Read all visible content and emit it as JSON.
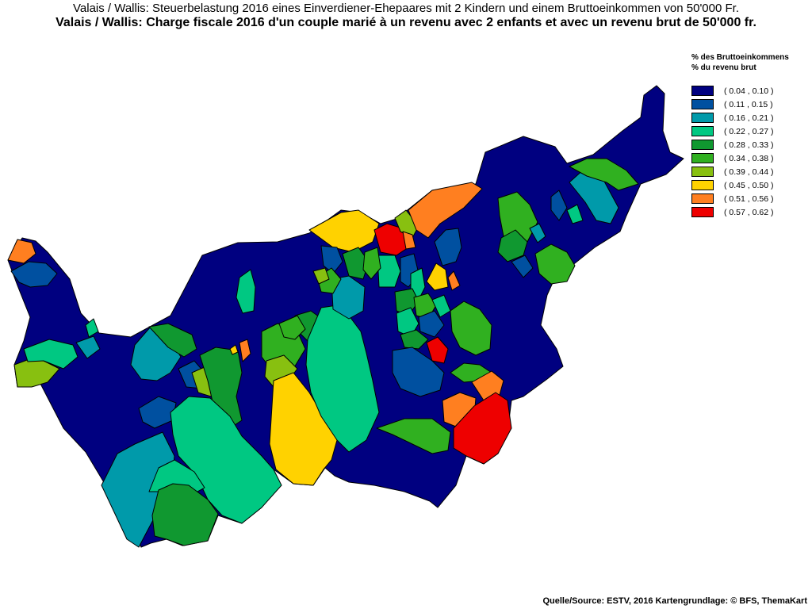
{
  "header": {
    "title_de": "Valais / Wallis: Steuerbelastung 2016 eines Einverdiener-Ehepaares mit 2 Kindern und einem Bruttoeinkommen von 50'000 Fr.",
    "title_fr": "Valais / Wallis: Charge fiscale 2016 d'un couple marié à un revenu avec 2 enfants et avec un revenu brut de 50'000 fr."
  },
  "legend": {
    "title_de": "% des Bruttoeinkommens",
    "title_fr": "% du revenu brut",
    "classes": [
      {
        "range": "( 0.04 , 0.10 )",
        "color": "#000080"
      },
      {
        "range": "( 0.11 , 0.15 )",
        "color": "#0050a0"
      },
      {
        "range": "( 0.16 , 0.21 )",
        "color": "#009aaa"
      },
      {
        "range": "( 0.22 , 0.27 )",
        "color": "#00c882"
      },
      {
        "range": "( 0.28 , 0.33 )",
        "color": "#109830"
      },
      {
        "range": "( 0.34 , 0.38 )",
        "color": "#30b020"
      },
      {
        "range": "( 0.39 , 0.44 )",
        "color": "#88c010"
      },
      {
        "range": "( 0.45 , 0.50 )",
        "color": "#ffd200"
      },
      {
        "range": "( 0.51 , 0.56 )",
        "color": "#ff7f20"
      },
      {
        "range": "( 0.57 , 0.62 )",
        "color": "#ee0000"
      }
    ]
  },
  "source": "Quelle/Source: ESTV, 2016 Kartengrundlage: © BFS, ThemaKart"
}
